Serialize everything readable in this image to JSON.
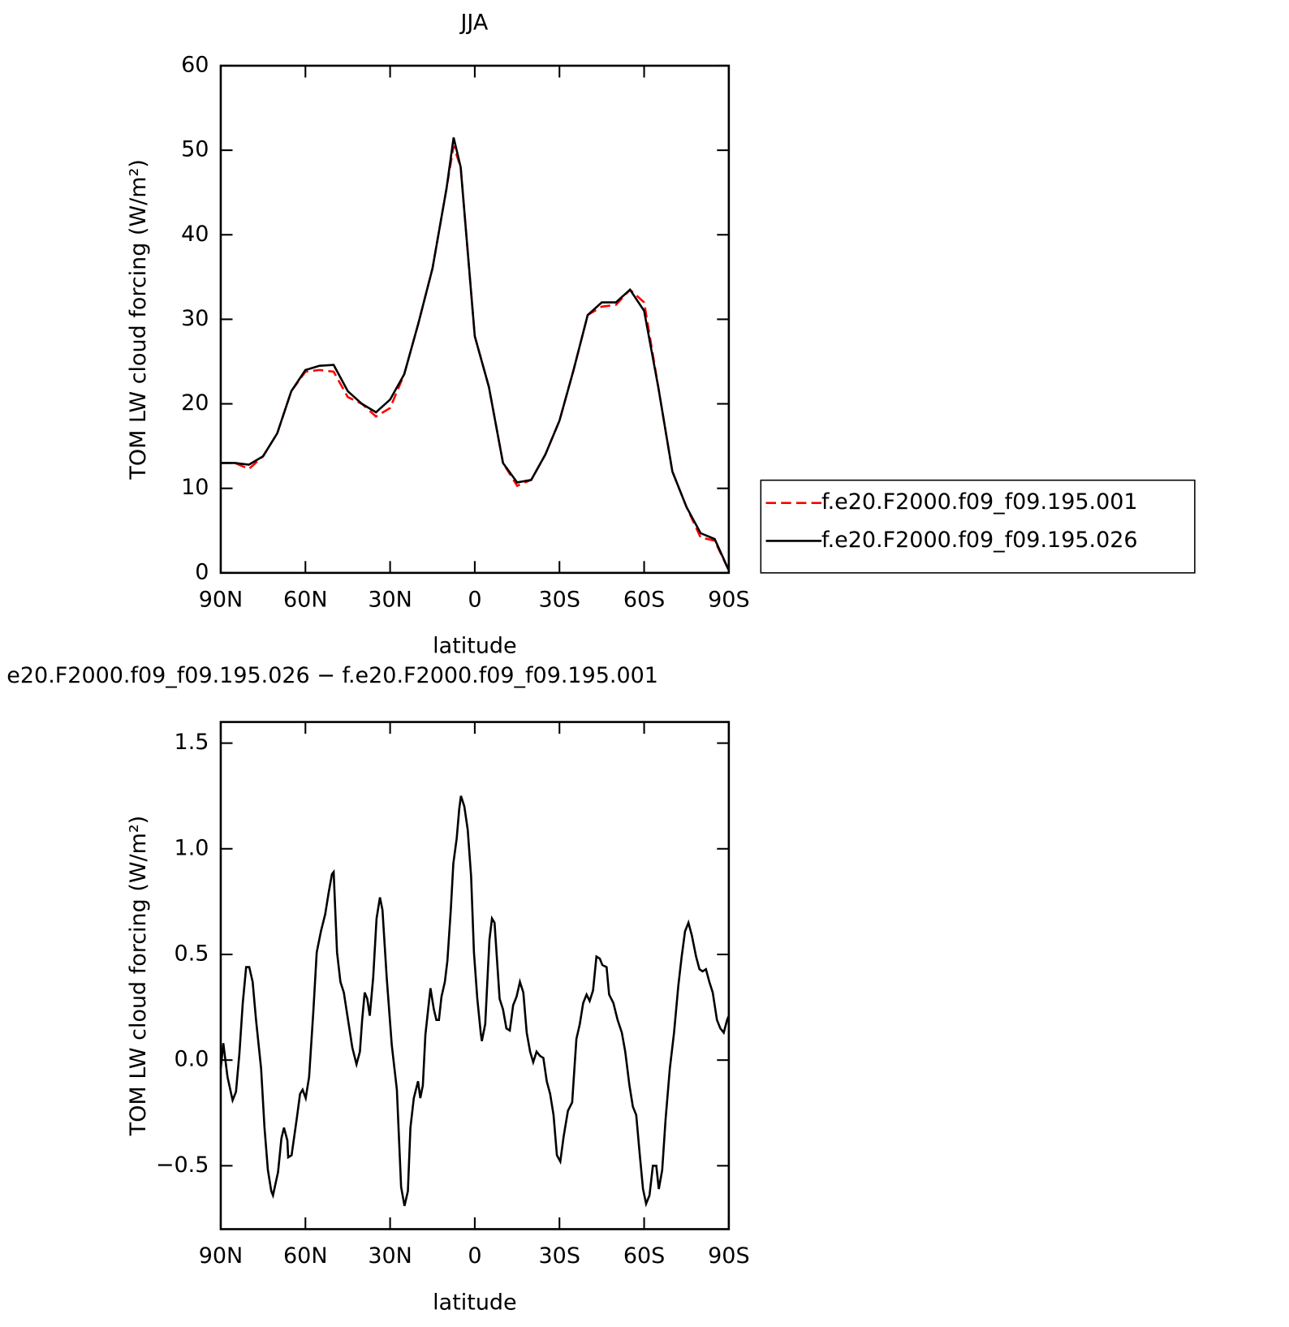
{
  "chart_data": [
    {
      "type": "line",
      "title": "JJA",
      "xlabel": "latitude",
      "ylabel": "TOM LW cloud forcing (W/m²)",
      "x": [
        90,
        85,
        80,
        75,
        70,
        65,
        60,
        55,
        50,
        45,
        40,
        35,
        30,
        25,
        20,
        15,
        10,
        7.5,
        5,
        0,
        -5,
        -10,
        -15,
        -20,
        -25,
        -30,
        -35,
        -40,
        -45,
        -50,
        -55,
        -60,
        -65,
        -70,
        -75,
        -80,
        -85,
        -90
      ],
      "series": [
        {
          "name": "f.e20.F2000.f09_f09.195.001",
          "color": "#ff0000",
          "dash": "dashed",
          "values": [
            13,
            13,
            12.3,
            13.8,
            16.5,
            21.5,
            23.8,
            24,
            23.8,
            20.8,
            20,
            18.5,
            19.5,
            23.5,
            29.5,
            36,
            45.5,
            50.5,
            48,
            28,
            22,
            13,
            10.3,
            11,
            14,
            18,
            24,
            30.5,
            31.5,
            31.7,
            33.5,
            32,
            22,
            12,
            7.8,
            4.2,
            3.8,
            0.3
          ]
        },
        {
          "name": "f.e20.F2000.f09_f09.195.026",
          "color": "#000000",
          "dash": "solid",
          "values": [
            13,
            13,
            12.8,
            13.8,
            16.5,
            21.5,
            24,
            24.5,
            24.6,
            21.5,
            20,
            19,
            20.5,
            23.5,
            29.5,
            36,
            45.5,
            51.5,
            48,
            28,
            22,
            13,
            10.7,
            11,
            14,
            18,
            24,
            30.5,
            32,
            32,
            33.5,
            31,
            22,
            12,
            7.8,
            4.7,
            4,
            0.3
          ]
        }
      ],
      "xlim": [
        90,
        -90
      ],
      "xticks": [
        {
          "value": 90,
          "label": "90N"
        },
        {
          "value": 60,
          "label": "60N"
        },
        {
          "value": 30,
          "label": "30N"
        },
        0,
        {
          "value": -30,
          "label": "30S"
        },
        {
          "value": -60,
          "label": "60S"
        },
        {
          "value": -90,
          "label": "90S"
        }
      ],
      "ylim": [
        0,
        60
      ],
      "yticks": [
        0,
        10,
        20,
        30,
        40,
        50,
        60
      ],
      "legend_position": "right"
    },
    {
      "type": "line",
      "title": "e20.F2000.f09_f09.195.026 − f.e20.F2000.f09_f09.195.001",
      "xlabel": "latitude",
      "ylabel": "TOM LW cloud forcing (W/m²)",
      "x": [
        90,
        89.1,
        87.6,
        85.8,
        84.6,
        83.4,
        82.2,
        81,
        79.9,
        78.7,
        77.5,
        75.7,
        74.5,
        73.3,
        72.1,
        71.5,
        69.7,
        68.5,
        67.6,
        66.4,
        66.1,
        64.9,
        63.1,
        61.9,
        61,
        59.9,
        58.7,
        57.2,
        56,
        54.5,
        53,
        51.8,
        50.6,
        50,
        48.8,
        47.6,
        46.4,
        44.9,
        43.4,
        41.9,
        40.7,
        39.9,
        39,
        38.1,
        37.2,
        36,
        34.8,
        33.6,
        32.7,
        31.2,
        29.4,
        27.6,
        26.1,
        24.9,
        23.7,
        22.8,
        21.6,
        20.1,
        19.3,
        18.4,
        17.5,
        15.7,
        14.5,
        13.6,
        12.7,
        11.8,
        10.6,
        9.7,
        8.5,
        7.6,
        6.4,
        5.5,
        4.9,
        3.7,
        2.5,
        1.3,
        0.3,
        -0.9,
        -2.1,
        -2.5,
        -3.7,
        -5.2,
        -6.1,
        -7,
        -7.9,
        -8.8,
        -10,
        -11.2,
        -12.4,
        -13.6,
        -14.8,
        -16,
        -17.2,
        -18.4,
        -19.6,
        -20.7,
        -21.9,
        -23.1,
        -24.3,
        -25.5,
        -26.7,
        -27.9,
        -29.1,
        -30.3,
        -31.5,
        -33,
        -34.5,
        -36,
        -37.2,
        -38.4,
        -39.6,
        -40.7,
        -41.9,
        -43.1,
        -44.3,
        -45.2,
        -46.7,
        -47.6,
        -49.1,
        -50.6,
        -52.1,
        -53.3,
        -54.8,
        -56,
        -57.2,
        -58.4,
        -59.6,
        -60.7,
        -61.9,
        -63.1,
        -64.3,
        -65.2,
        -66.4,
        -67.6,
        -69.1,
        -70.6,
        -72.1,
        -73.3,
        -74.5,
        -75.7,
        -76.9,
        -78.4,
        -79.6,
        -80.7,
        -81.9,
        -83.1,
        -84.3,
        -85.8,
        -87,
        -88.2,
        -89.4,
        -90
      ],
      "series": [
        {
          "color": "#000000",
          "dash": "solid",
          "values": [
            -0.04,
            0.08,
            -0.08,
            -0.19,
            -0.15,
            0.03,
            0.27,
            0.44,
            0.44,
            0.37,
            0.19,
            -0.04,
            -0.32,
            -0.52,
            -0.62,
            -0.64,
            -0.53,
            -0.37,
            -0.32,
            -0.38,
            -0.46,
            -0.45,
            -0.28,
            -0.16,
            -0.14,
            -0.18,
            -0.08,
            0.23,
            0.51,
            0.61,
            0.69,
            0.79,
            0.88,
            0.89,
            0.51,
            0.37,
            0.32,
            0.19,
            0.06,
            -0.02,
            0.04,
            0.19,
            0.32,
            0.29,
            0.21,
            0.39,
            0.67,
            0.77,
            0.71,
            0.39,
            0.07,
            -0.14,
            -0.6,
            -0.69,
            -0.62,
            -0.32,
            -0.18,
            -0.1,
            -0.18,
            -0.12,
            0.12,
            0.34,
            0.24,
            0.19,
            0.19,
            0.3,
            0.37,
            0.47,
            0.71,
            0.93,
            1.05,
            1.19,
            1.25,
            1.2,
            1.09,
            0.87,
            0.51,
            0.29,
            0.13,
            0.09,
            0.17,
            0.57,
            0.67,
            0.65,
            0.47,
            0.29,
            0.24,
            0.15,
            0.14,
            0.26,
            0.3,
            0.37,
            0.32,
            0.13,
            0.04,
            -0.01,
            0.04,
            0.02,
            0.01,
            -0.1,
            -0.16,
            -0.26,
            -0.45,
            -0.48,
            -0.36,
            -0.24,
            -0.2,
            0.1,
            0.17,
            0.27,
            0.31,
            0.28,
            0.33,
            0.49,
            0.48,
            0.45,
            0.44,
            0.31,
            0.27,
            0.19,
            0.13,
            0.04,
            -0.12,
            -0.22,
            -0.26,
            -0.44,
            -0.61,
            -0.68,
            -0.64,
            -0.5,
            -0.5,
            -0.61,
            -0.52,
            -0.28,
            -0.04,
            0.13,
            0.35,
            0.49,
            0.61,
            0.65,
            0.59,
            0.49,
            0.43,
            0.42,
            0.43,
            0.37,
            0.32,
            0.19,
            0.15,
            0.13,
            0.19,
            0.21
          ]
        }
      ],
      "xlim": [
        90,
        -90
      ],
      "xticks": [
        {
          "value": 90,
          "label": "90N"
        },
        {
          "value": 60,
          "label": "60N"
        },
        {
          "value": 30,
          "label": "30N"
        },
        0,
        {
          "value": -30,
          "label": "30S"
        },
        {
          "value": -60,
          "label": "60S"
        },
        {
          "value": -90,
          "label": "90S"
        }
      ],
      "ylim": [
        -0.8,
        1.6
      ],
      "yticks": [
        {
          "value": -0.5,
          "label": "−0.5"
        },
        {
          "value": 0,
          "label": "0.0"
        },
        0.5,
        {
          "value": 1,
          "label": "1.0"
        },
        1.5
      ]
    }
  ]
}
